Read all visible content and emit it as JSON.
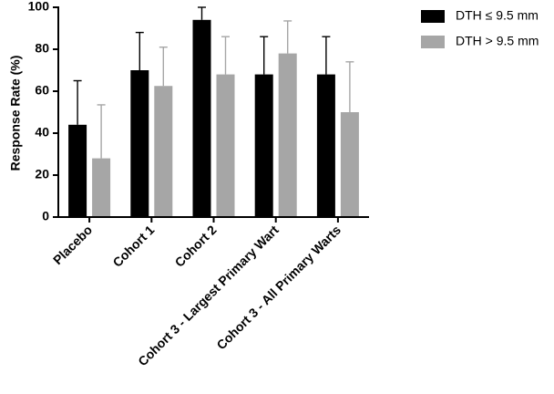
{
  "chart_data": {
    "type": "bar",
    "title": "",
    "xlabel": "",
    "ylabel": "Response Rate (%)",
    "ylim": [
      0,
      100
    ],
    "yticks": [
      0,
      20,
      40,
      60,
      80,
      100
    ],
    "categories": [
      "Placebo",
      "Cohort 1",
      "Cohort 2",
      "Cohort 3 - Largest Primary Wart",
      "Cohort 3 - All Primary Warts"
    ],
    "series": [
      {
        "name": "DTH ≤ 9.5 mm",
        "color": "#000000",
        "values": [
          44,
          70,
          94,
          68,
          68
        ],
        "errors_upper": [
          65,
          88,
          100,
          86,
          86
        ]
      },
      {
        "name": "DTH > 9.5 mm",
        "color": "#a6a6a6",
        "values": [
          28,
          62.5,
          68,
          78,
          50
        ],
        "errors_upper": [
          53.5,
          81,
          86,
          93.5,
          74
        ]
      }
    ],
    "legend_position": "top-right"
  }
}
